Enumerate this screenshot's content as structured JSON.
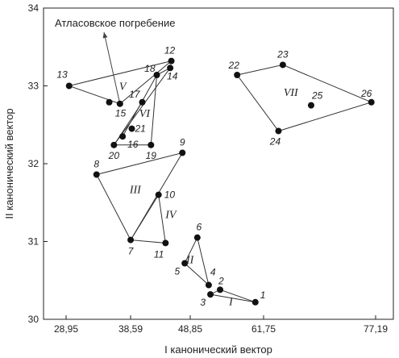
{
  "chart_data": {
    "type": "scatter",
    "xlabel": "I канонический вектор",
    "ylabel": "II канонический вектор",
    "x_ticks": [
      "28,95",
      "38,59",
      "48,85",
      "61,75",
      "77,19"
    ],
    "y_ticks": [
      "30",
      "31",
      "32",
      "33",
      "34"
    ],
    "ylim": [
      30,
      34
    ],
    "points": [
      {
        "label": "1",
        "x": 60.3,
        "y": 30.22
      },
      {
        "label": "2",
        "x": 54.1,
        "y": 30.38
      },
      {
        "label": "3",
        "x": 52.4,
        "y": 30.32
      },
      {
        "label": "4",
        "x": 52.1,
        "y": 30.44
      },
      {
        "label": "5",
        "x": 47.9,
        "y": 30.72
      },
      {
        "label": "6",
        "x": 50.1,
        "y": 31.05
      },
      {
        "label": "7",
        "x": 38.6,
        "y": 31.02
      },
      {
        "label": "8",
        "x": 33.5,
        "y": 31.86
      },
      {
        "label": "9",
        "x": 47.5,
        "y": 32.14
      },
      {
        "label": "10",
        "x": 43.4,
        "y": 31.6
      },
      {
        "label": "11",
        "x": 44.6,
        "y": 30.98
      },
      {
        "label": "12",
        "x": 45.6,
        "y": 33.32
      },
      {
        "label": "13",
        "x": 29.4,
        "y": 33.0
      },
      {
        "label": "14",
        "x": 45.4,
        "y": 33.23
      },
      {
        "label": "15",
        "x": 37.0,
        "y": 32.77
      },
      {
        "label": "16",
        "x": 37.4,
        "y": 32.35
      },
      {
        "label": "17",
        "x": 40.6,
        "y": 32.79
      },
      {
        "label": "18",
        "x": 43.1,
        "y": 33.14
      },
      {
        "label": "19",
        "x": 42.1,
        "y": 32.24
      },
      {
        "label": "20",
        "x": 36.1,
        "y": 32.24
      },
      {
        "label": "21",
        "x": 38.8,
        "y": 32.45
      },
      {
        "label": "22",
        "x": 57.1,
        "y": 33.14
      },
      {
        "label": "23",
        "x": 64.4,
        "y": 33.27
      },
      {
        "label": "24",
        "x": 63.8,
        "y": 32.42
      },
      {
        "label": "25",
        "x": 68.3,
        "y": 32.75
      },
      {
        "label": "26",
        "x": 76.6,
        "y": 32.79
      },
      {
        "label": "",
        "x": 35.4,
        "y": 32.79
      }
    ],
    "groups": [
      {
        "name": "I",
        "vertices": [
          "1",
          "2",
          "3"
        ],
        "label_pos": [
          56.0,
          30.18
        ]
      },
      {
        "name": "II",
        "vertices": [
          "4",
          "5",
          "6"
        ],
        "label_pos": [
          48.8,
          30.72
        ]
      },
      {
        "name": "III",
        "vertices": [
          "7",
          "8",
          "9"
        ],
        "label_pos": [
          39.4,
          31.62
        ]
      },
      {
        "name": "IV",
        "vertices": [
          "10",
          "11",
          "7"
        ],
        "label_pos": [
          45.5,
          31.3
        ]
      },
      {
        "name": "V",
        "vertices": [
          "13",
          "12",
          "15"
        ],
        "label_pos": [
          37.4,
          32.95
        ]
      },
      {
        "name": "VI",
        "vertices": [
          "20",
          "14",
          "18",
          "19"
        ],
        "label_pos": [
          41.0,
          32.6
        ]
      },
      {
        "name": "VII",
        "vertices": [
          "22",
          "23",
          "26",
          "24"
        ],
        "label_pos": [
          65.5,
          32.87
        ]
      }
    ],
    "annotation": {
      "text": "Атласовское погребение",
      "arrow_from": "15"
    }
  }
}
